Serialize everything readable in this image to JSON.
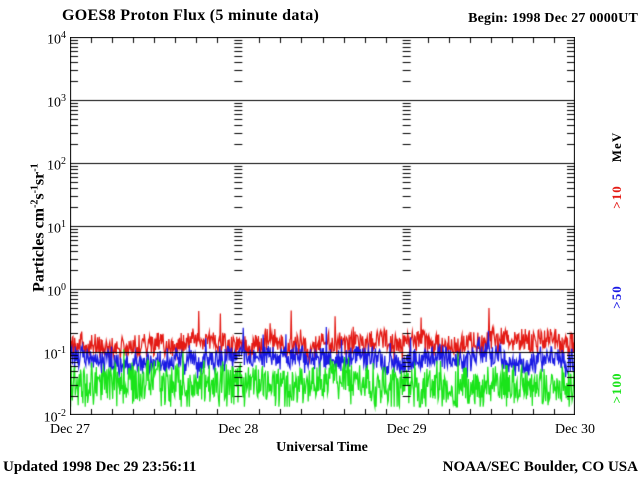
{
  "header": {
    "title": "GOES8 Proton Flux (5 minute data)",
    "begin_label": "Begin: 1998 Dec 27 0000UT"
  },
  "footer": {
    "updated": "Updated 1998 Dec 29 23:56:11",
    "source": "NOAA/SEC Boulder, CO USA"
  },
  "y_axis_title_segments": [
    {
      "text": "Particles cm"
    },
    {
      "text": "-2",
      "sup": true
    },
    {
      "text": "s",
      "sup": false
    },
    {
      "text": "-1",
      "sup": true
    },
    {
      "text": "sr",
      "sup": false
    },
    {
      "text": "-1",
      "sup": true
    }
  ],
  "side_labels": [
    {
      "text": "MeV",
      "color": "#000000"
    },
    {
      "text": ">10",
      "color": "#e41a14"
    },
    {
      "text": ">50",
      "color": "#1a1ae4"
    },
    {
      "text": ">100",
      "color": "#1ae41a"
    }
  ],
  "chart_data": {
    "type": "line",
    "title": "GOES8 Proton Flux (5 minute data)",
    "xlabel": "Universal Time",
    "ylabel": "Particles cm^-2 s^-1 sr^-1",
    "y_scale": "log",
    "ylim": [
      0.01,
      10000
    ],
    "y_tick_exponents": [
      4,
      3,
      2,
      1,
      0,
      -1,
      -2
    ],
    "grid_decades_solid": [
      1000,
      100,
      10,
      1,
      0.1
    ],
    "x_ticks": [
      "Dec 27",
      "Dec 28",
      "Dec 29",
      "Dec 30"
    ],
    "x_range_days": 3,
    "points_per_day": 288,
    "x_minor_tick_hours": 3,
    "day_boundary_guides": true,
    "legend_position": "right-margin-rotated",
    "seed": 19981227,
    "series": [
      {
        "name": ">10 MeV",
        "color": "#e41a14",
        "median": 0.135,
        "scatter_log": 0.17,
        "walk_log": 0.05,
        "spike_prob": 0.03,
        "spike_log": 0.45,
        "dip_prob": 0.05,
        "dip_log": 0.15,
        "min": 0.06,
        "max": 0.5
      },
      {
        "name": ">50 MeV",
        "color": "#1a1ae4",
        "median": 0.078,
        "scatter_log": 0.17,
        "walk_log": 0.05,
        "spike_prob": 0.03,
        "spike_log": 0.35,
        "dip_prob": 0.08,
        "dip_log": 0.18,
        "min": 0.035,
        "max": 0.27
      },
      {
        "name": ">100 MeV",
        "color": "#1ae41a",
        "median": 0.032,
        "scatter_log": 0.28,
        "walk_log": 0.05,
        "spike_prob": 0.02,
        "spike_log": 0.4,
        "dip_prob": 0.3,
        "dip_log": 0.3,
        "min": 0.0135,
        "max": 0.12
      }
    ]
  }
}
